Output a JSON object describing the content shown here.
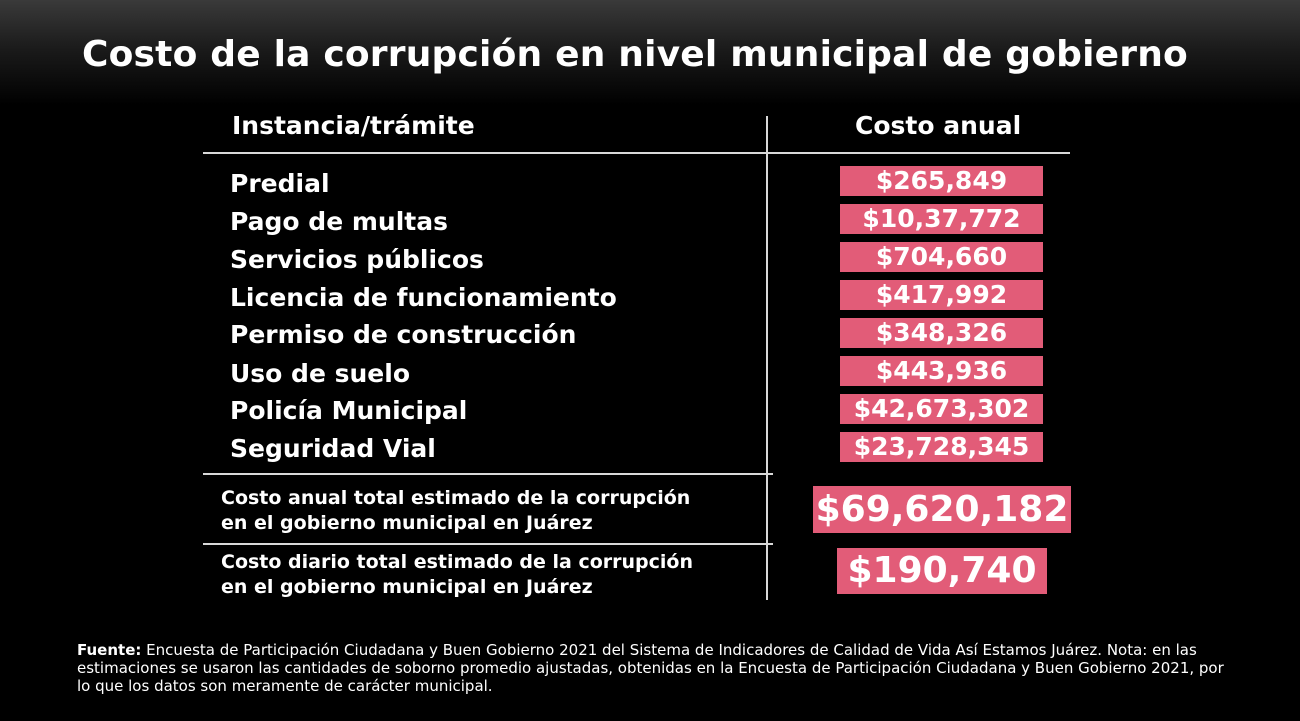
{
  "title": "Costo de la corrupción en nivel municipal de gobierno",
  "table": {
    "header_left": "Instancia/trámite",
    "header_right": "Costo anual",
    "rows": [
      {
        "label": "Predial",
        "value": "$265,849"
      },
      {
        "label": "Pago de multas",
        "value": "$10,37,772"
      },
      {
        "label": "Servicios públicos",
        "value": "$704,660"
      },
      {
        "label": "Licencia de funcionamiento",
        "value": "$417,992"
      },
      {
        "label": "Permiso de construcción",
        "value": "$348,326"
      },
      {
        "label": "Uso de suelo",
        "value": "$443,936"
      },
      {
        "label": "Policía Municipal",
        "value": "$42,673,302"
      },
      {
        "label": "Seguridad Vial",
        "value": "$23,728,345"
      }
    ],
    "total_annual": {
      "label_line1": "Costo anual total estimado de la corrupción",
      "label_line2": "en el gobierno municipal en Juárez",
      "value": "$69,620,182"
    },
    "total_daily": {
      "label_line1": "Costo diario total estimado de la corrupción",
      "label_line2": "en el gobierno municipal en Juárez",
      "value": "$190,740"
    }
  },
  "footer": {
    "label": "Fuente:",
    "text": " Encuesta de Participación Ciudadana y Buen Gobierno 2021 del Sistema de Indicadores de Calidad de Vida Así Estamos Juárez. Nota: en las estimaciones se usaron las cantidades de soborno promedio ajustadas, obtenidas en la Encuesta de Participación Ciudadana y Buen Gobierno 2021, por lo que los datos son meramente de carácter municipal."
  },
  "colors": {
    "background": "#000000",
    "accent": "#e25c78",
    "text": "#ffffff",
    "rule": "#d8d8d8"
  }
}
